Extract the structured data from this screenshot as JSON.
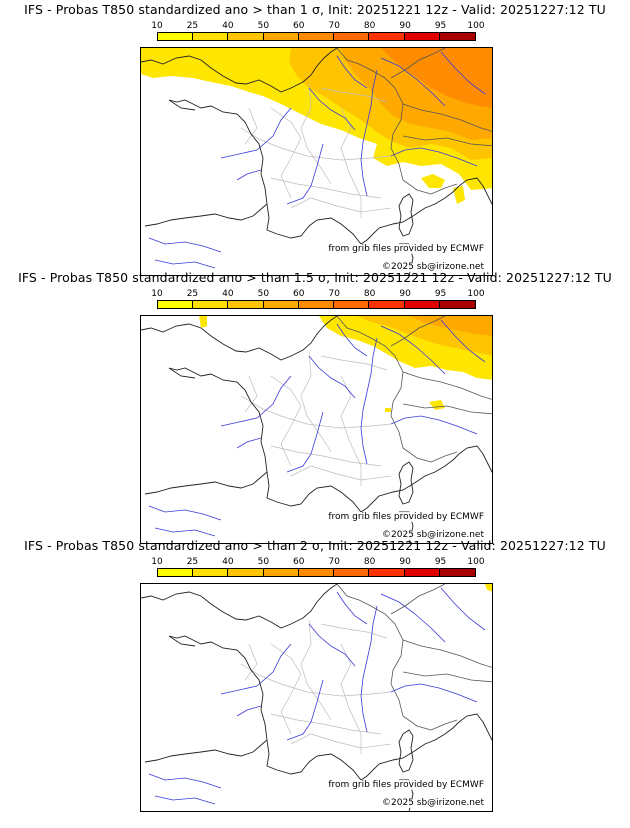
{
  "panels": [
    {
      "title": "IFS - Probas T850  standardized ano > than 1 σ, Init: 20251221 12z - Valid: 20251227:12 TU",
      "coverage": "high"
    },
    {
      "title": "IFS - Probas T850  standardized ano > than 1.5 σ, Init: 20251221 12z - Valid: 20251227:12 TU",
      "coverage": "medium"
    },
    {
      "title": "IFS - Probas T850  standardized ano > than 2 σ, Init: 20251221 12z - Valid: 20251227:12 TU",
      "coverage": "low"
    }
  ],
  "colorbar": {
    "ticks": [
      "10",
      "25",
      "40",
      "50",
      "60",
      "70",
      "80",
      "90",
      "95",
      "100"
    ],
    "colors": [
      "#ffff00",
      "#ffe000",
      "#ffc400",
      "#ffa800",
      "#ff8c00",
      "#ff6a00",
      "#ff3200",
      "#e00000",
      "#a80000",
      "#6a0000"
    ]
  },
  "credits": {
    "source": "from grib files provided by ECMWF",
    "copyright": "©2025 sb@irizone.net"
  }
}
